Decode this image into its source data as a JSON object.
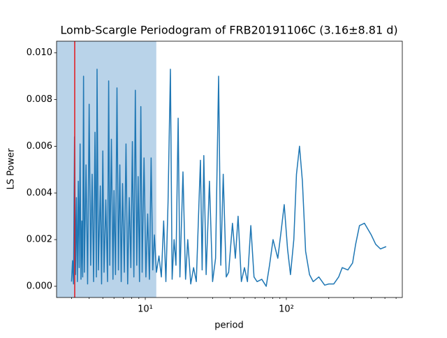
{
  "chart_data": {
    "type": "line",
    "title": "Lomb-Scargle Periodogram of FRB20191106C (3.16±8.81 d)",
    "x_label": "period",
    "y_label": "LS Power",
    "x_scale": "log",
    "xlim": [
      2.35,
      664
    ],
    "ylim": [
      -0.00048,
      0.0105
    ],
    "xticks": [
      {
        "value": 10,
        "label": "10¹"
      },
      {
        "value": 100,
        "label": "10²"
      }
    ],
    "xminor_ticks": [
      3,
      4,
      5,
      6,
      7,
      8,
      9,
      20,
      30,
      40,
      50,
      60,
      70,
      80,
      90,
      200,
      300,
      400,
      500,
      600
    ],
    "yticks": [
      {
        "value": 0,
        "label": "0.000"
      },
      {
        "value": 0.002,
        "label": "0.002"
      },
      {
        "value": 0.004,
        "label": "0.004"
      },
      {
        "value": 0.006,
        "label": "0.006"
      },
      {
        "value": 0.008,
        "label": "0.008"
      },
      {
        "value": 0.01,
        "label": "0.010"
      }
    ],
    "span": [
      -5.65,
      11.97
    ],
    "span_color": "#b9d3e9",
    "marker_x": 3.16,
    "marker_color": "#e4161b",
    "series": [
      {
        "color": "#1f77b4",
        "x": [
          3.0,
          3.05,
          3.1,
          3.15,
          3.2,
          3.25,
          3.3,
          3.35,
          3.4,
          3.45,
          3.5,
          3.55,
          3.6,
          3.65,
          3.7,
          3.8,
          3.9,
          4.0,
          4.1,
          4.2,
          4.3,
          4.4,
          4.5,
          4.55,
          4.65,
          4.8,
          4.9,
          5.0,
          5.1,
          5.25,
          5.4,
          5.5,
          5.6,
          5.75,
          5.9,
          6.0,
          6.15,
          6.3,
          6.45,
          6.6,
          6.75,
          6.9,
          7.1,
          7.3,
          7.5,
          7.7,
          7.9,
          8.1,
          8.3,
          8.5,
          8.7,
          8.9,
          9.1,
          9.3,
          9.5,
          9.8,
          10.1,
          10.4,
          10.7,
          11.0,
          11.3,
          11.6,
          12.0,
          12.5,
          13,
          13.5,
          14,
          14.5,
          15.07,
          15.5,
          16,
          16.5,
          17.1,
          17.6,
          18.5,
          19.3,
          20,
          21,
          22,
          23,
          24.6,
          25.3,
          26,
          27,
          28.5,
          30,
          31.5,
          33.1,
          34.3,
          35.7,
          37.5,
          39,
          41.5,
          43.5,
          45.5,
          48,
          50.5,
          53,
          56,
          59,
          62,
          67,
          72,
          76,
          80.5,
          87,
          92,
          96.6,
          102,
          107,
          113,
          118,
          124,
          130,
          137,
          146,
          155,
          170,
          187,
          200,
          217,
          235,
          249,
          273,
          295,
          310,
          330,
          358,
          400,
          430,
          465,
          510
        ],
        "values": [
          0.0002,
          0.0011,
          0.0001,
          0.0064,
          0.0005,
          0.0038,
          0.0002,
          0.0045,
          0.0008,
          0.0061,
          0.0003,
          0.0028,
          0.0004,
          0.009,
          0.0006,
          0.0052,
          0.0001,
          0.0078,
          0.0009,
          0.0048,
          0.0002,
          0.0066,
          0.0004,
          0.0093,
          0.0007,
          0.0043,
          0.0001,
          0.0058,
          0.0006,
          0.0037,
          0.0002,
          0.0088,
          0.0009,
          0.0063,
          0.0003,
          0.0041,
          0.0005,
          0.0085,
          0.0007,
          0.0052,
          0.0002,
          0.0044,
          0.0006,
          0.0061,
          0.0001,
          0.0038,
          0.0008,
          0.0062,
          0.0004,
          0.0084,
          0.0009,
          0.0047,
          0.0002,
          0.0077,
          0.0006,
          0.0055,
          0.0004,
          0.0031,
          0.0003,
          0.0055,
          0.0007,
          0.0022,
          0.0006,
          0.0013,
          0.0004,
          0.0028,
          0.0002,
          0.0036,
          0.0093,
          0.0003,
          0.002,
          0.0009,
          0.0072,
          0.0004,
          0.0049,
          0.0003,
          0.002,
          0.0001,
          0.0008,
          0.0002,
          0.0054,
          0.0007,
          0.0056,
          0.0005,
          0.0045,
          0.0002,
          0.0012,
          0.009,
          0.0009,
          0.0048,
          0.0004,
          0.0006,
          0.0027,
          0.0012,
          0.003,
          0.0002,
          0.0008,
          0.0002,
          0.0026,
          0.0004,
          0.0002,
          0.0003,
          0.0,
          0.0009,
          0.002,
          0.0012,
          0.0024,
          0.0035,
          0.0016,
          0.0005,
          0.002,
          0.0048,
          0.006,
          0.0045,
          0.0015,
          0.0005,
          0.0002,
          0.0004,
          5e-05,
          0.0001,
          0.0001,
          0.0004,
          0.0008,
          0.0007,
          0.001,
          0.0018,
          0.0026,
          0.0027,
          0.0022,
          0.0018,
          0.0016,
          0.0017
        ]
      }
    ]
  }
}
